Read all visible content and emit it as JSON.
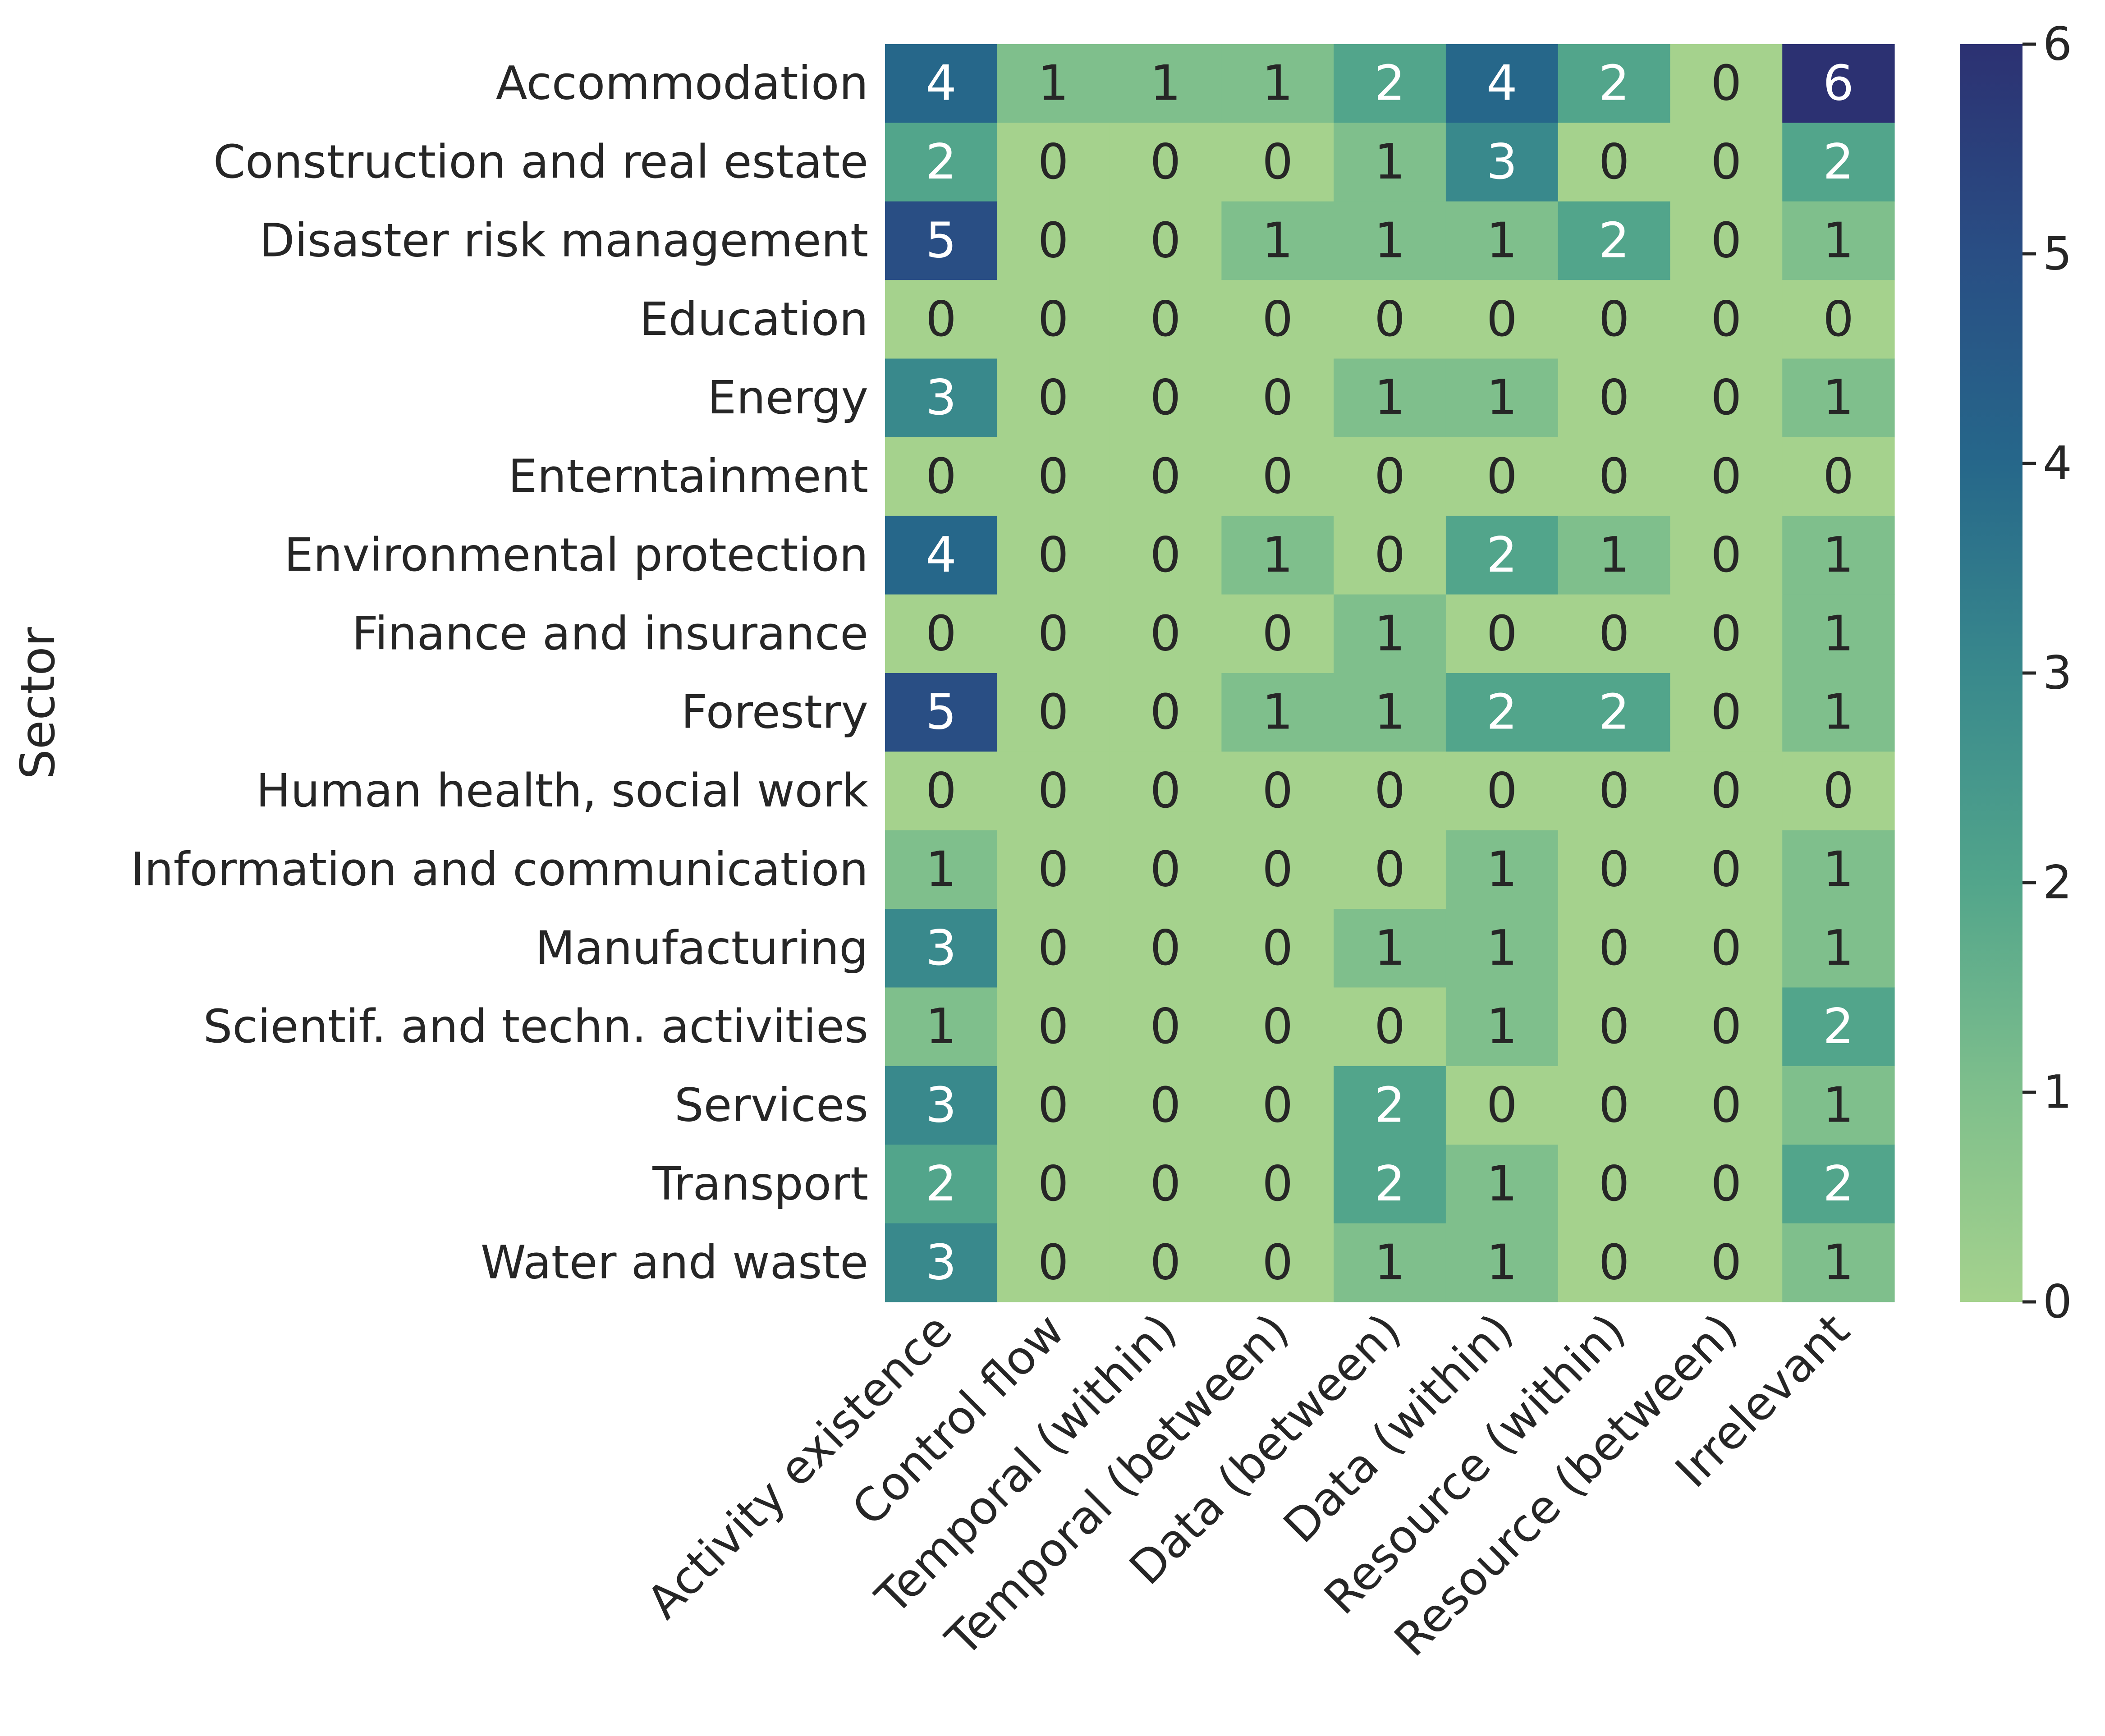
{
  "chart_data": {
    "type": "heatmap",
    "ylabel": "Sector",
    "xlabel": "",
    "rows": [
      "Accommodation",
      "Construction and real estate",
      "Disaster risk management",
      "Education",
      "Energy",
      "Enterntainment",
      "Environmental protection",
      "Finance and insurance",
      "Forestry",
      "Human health, social work",
      "Information and communication",
      "Manufacturing",
      "Scientif. and techn. activities",
      "Services",
      "Transport",
      "Water and waste"
    ],
    "columns": [
      "Activity existence",
      "Control flow",
      "Temporal (within)",
      "Temporal (between)",
      "Data (between)",
      "Data (within)",
      "Resource (within)",
      "Resource (between)",
      "Irrelevant"
    ],
    "values": [
      [
        4,
        1,
        1,
        1,
        2,
        4,
        2,
        0,
        6
      ],
      [
        2,
        0,
        0,
        0,
        1,
        3,
        0,
        0,
        2
      ],
      [
        5,
        0,
        0,
        1,
        1,
        1,
        2,
        0,
        1
      ],
      [
        0,
        0,
        0,
        0,
        0,
        0,
        0,
        0,
        0
      ],
      [
        3,
        0,
        0,
        0,
        1,
        1,
        0,
        0,
        1
      ],
      [
        0,
        0,
        0,
        0,
        0,
        0,
        0,
        0,
        0
      ],
      [
        4,
        0,
        0,
        1,
        0,
        2,
        1,
        0,
        1
      ],
      [
        0,
        0,
        0,
        0,
        1,
        0,
        0,
        0,
        1
      ],
      [
        5,
        0,
        0,
        1,
        1,
        2,
        2,
        0,
        1
      ],
      [
        0,
        0,
        0,
        0,
        0,
        0,
        0,
        0,
        0
      ],
      [
        1,
        0,
        0,
        0,
        0,
        1,
        0,
        0,
        1
      ],
      [
        3,
        0,
        0,
        0,
        1,
        1,
        0,
        0,
        1
      ],
      [
        1,
        0,
        0,
        0,
        0,
        1,
        0,
        0,
        2
      ],
      [
        3,
        0,
        0,
        0,
        2,
        0,
        0,
        0,
        1
      ],
      [
        2,
        0,
        0,
        0,
        2,
        1,
        0,
        0,
        2
      ],
      [
        3,
        0,
        0,
        0,
        1,
        1,
        0,
        0,
        1
      ]
    ],
    "colorbar": {
      "min": 0,
      "max": 6,
      "ticks": [
        "0",
        "1",
        "2",
        "3",
        "4",
        "5",
        "6"
      ]
    },
    "colormap": [
      "#a5d28d",
      "#7fbf8c",
      "#52a58b",
      "#39898c",
      "#26678a",
      "#294e84",
      "#2c3172"
    ],
    "text_dark": "#262626",
    "text_light": "#ffffff"
  }
}
